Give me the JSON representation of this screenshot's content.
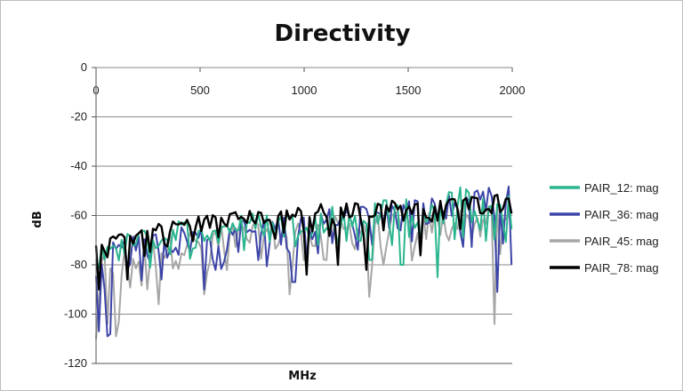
{
  "chart_data": {
    "type": "line",
    "title": "Directivity",
    "xlabel": "MHz",
    "ylabel": "dB",
    "xlim": [
      0,
      2000
    ],
    "ylim": [
      -120,
      0
    ],
    "x_ticks": [
      0,
      500,
      1000,
      1500,
      2000
    ],
    "y_ticks": [
      0,
      -20,
      -40,
      -60,
      -80,
      -100,
      -120
    ],
    "x_tick_labels": [
      "0",
      "500",
      "1000",
      "1500",
      "2000"
    ],
    "y_tick_labels": [
      "0",
      "-20",
      "-40",
      "-60",
      "-80",
      "-100",
      "-120"
    ],
    "grid": "horizontal",
    "legend_position": "right",
    "series": [
      {
        "name": "PAIR_12: mag",
        "color": "#2bb58f",
        "x": [
          0,
          100,
          200,
          300,
          400,
          500,
          600,
          700,
          800,
          900,
          1000,
          1100,
          1200,
          1300,
          1400,
          1500,
          1600,
          1700,
          1800,
          1900,
          2000
        ],
        "upper": [
          -72,
          -68,
          -66,
          -64,
          -62,
          -62,
          -60,
          -59,
          -58,
          -58,
          -57,
          -56,
          -55,
          -54,
          -53,
          -51,
          -50,
          -49,
          -48,
          -47,
          -47
        ],
        "lower": [
          -80,
          -78,
          -77,
          -75,
          -74,
          -73,
          -72,
          -71,
          -70,
          -70,
          -69,
          -69,
          -68,
          -68,
          -67,
          -67,
          -66,
          -66,
          -65,
          -65,
          -65
        ],
        "dips": [
          [
            1320,
            -78
          ],
          [
            1640,
            -85
          ],
          [
            1470,
            -80
          ]
        ]
      },
      {
        "name": "PAIR_36: mag",
        "color": "#3c44a8",
        "x": [
          0,
          100,
          200,
          300,
          400,
          500,
          600,
          700,
          800,
          900,
          1000,
          1100,
          1200,
          1300,
          1400,
          1500,
          1600,
          1700,
          1800,
          1900,
          2000
        ],
        "upper": [
          -74,
          -70,
          -68,
          -66,
          -64,
          -63,
          -62,
          -61,
          -60,
          -59,
          -58,
          -57,
          -56,
          -55,
          -54,
          -53,
          -52,
          -51,
          -50,
          -48,
          -48
        ],
        "lower": [
          -86,
          -84,
          -82,
          -80,
          -79,
          -78,
          -77,
          -76,
          -75,
          -74,
          -73,
          -72,
          -71,
          -70,
          -70,
          -69,
          -68,
          -68,
          -67,
          -67,
          -67
        ],
        "dips": [
          [
            20,
            -107
          ],
          [
            50,
            -109
          ],
          [
            70,
            -108
          ],
          [
            320,
            -86
          ],
          [
            520,
            -90
          ],
          [
            950,
            -87
          ],
          [
            1930,
            -91
          ],
          [
            1995,
            -80
          ]
        ]
      },
      {
        "name": "PAIR_45: mag",
        "color": "#a6a6a6",
        "x": [
          0,
          100,
          200,
          300,
          400,
          500,
          600,
          700,
          800,
          900,
          1000,
          1100,
          1200,
          1300,
          1400,
          1500,
          1600,
          1700,
          1800,
          1900,
          2000
        ],
        "upper": [
          -76,
          -72,
          -70,
          -68,
          -66,
          -65,
          -64,
          -63,
          -62,
          -61,
          -61,
          -60,
          -60,
          -59,
          -59,
          -58,
          -58,
          -57,
          -57,
          -56,
          -56
        ],
        "lower": [
          -90,
          -88,
          -86,
          -84,
          -82,
          -80,
          -79,
          -78,
          -78,
          -77,
          -76,
          -76,
          -75,
          -75,
          -74,
          -74,
          -73,
          -73,
          -72,
          -72,
          -71
        ],
        "dips": [
          [
            5,
            -110
          ],
          [
            60,
            -104
          ],
          [
            90,
            -109
          ],
          [
            110,
            -103
          ],
          [
            300,
            -96
          ],
          [
            520,
            -92
          ],
          [
            930,
            -92
          ],
          [
            1310,
            -93
          ],
          [
            1910,
            -104
          ]
        ]
      },
      {
        "name": "PAIR_78: mag",
        "color": "#000000",
        "x": [
          0,
          100,
          200,
          300,
          400,
          500,
          600,
          700,
          800,
          900,
          1000,
          1100,
          1200,
          1300,
          1400,
          1500,
          1600,
          1700,
          1800,
          1900,
          2000
        ],
        "upper": [
          -69,
          -66,
          -64,
          -62,
          -61,
          -60,
          -59,
          -58,
          -58,
          -57,
          -56,
          -55,
          -55,
          -54,
          -54,
          -53,
          -53,
          -52,
          -52,
          -51,
          -51
        ],
        "lower": [
          -78,
          -74,
          -72,
          -70,
          -68,
          -67,
          -66,
          -65,
          -64,
          -64,
          -63,
          -63,
          -62,
          -62,
          -61,
          -61,
          -61,
          -60,
          -60,
          -60,
          -59
        ],
        "dips": [
          [
            20,
            -90
          ],
          [
            150,
            -86
          ],
          [
            1010,
            -84
          ],
          [
            1160,
            -80
          ],
          [
            1300,
            -82
          ],
          [
            1560,
            -76
          ]
        ]
      }
    ]
  }
}
